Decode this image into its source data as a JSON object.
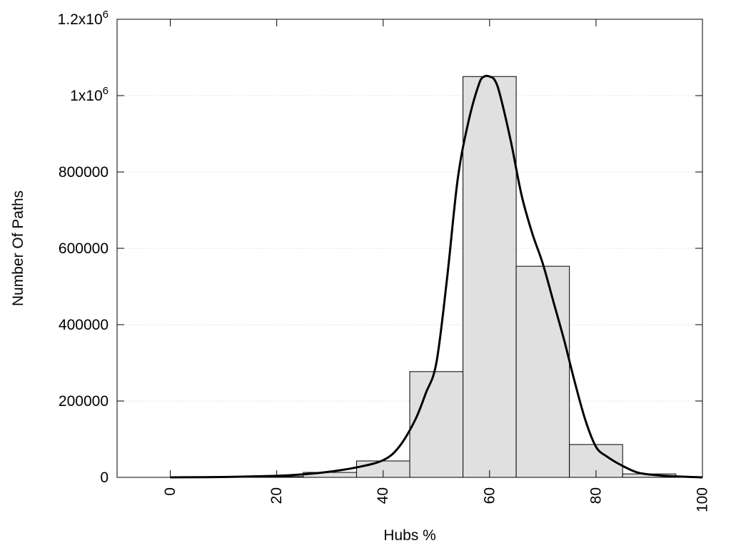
{
  "chart_data": {
    "type": "bar",
    "title": "",
    "xlabel": "Hubs %",
    "ylabel": "Number Of Paths",
    "xlim": [
      -10,
      100
    ],
    "ylim": [
      0,
      1200000
    ],
    "grid": "horizontal dotted",
    "bin_width": 10,
    "bars": [
      {
        "center": 0,
        "value": 0
      },
      {
        "center": 10,
        "value": 500
      },
      {
        "center": 20,
        "value": 2000
      },
      {
        "center": 30,
        "value": 13000
      },
      {
        "center": 40,
        "value": 43000
      },
      {
        "center": 50,
        "value": 277000
      },
      {
        "center": 60,
        "value": 1050000
      },
      {
        "center": 70,
        "value": 553000
      },
      {
        "center": 80,
        "value": 86000
      },
      {
        "center": 90,
        "value": 9000
      }
    ],
    "fitted_curve": {
      "x": [
        0,
        10,
        20,
        25,
        30,
        35,
        40,
        43,
        46,
        48,
        50,
        52,
        54,
        56,
        58,
        59,
        60,
        61,
        62,
        64,
        66,
        68,
        70,
        72,
        74,
        76,
        78,
        80,
        82,
        85,
        88,
        92,
        96,
        100
      ],
      "y": [
        0,
        1000,
        4000,
        8000,
        15000,
        26000,
        45000,
        80000,
        150000,
        220000,
        300000,
        520000,
        780000,
        930000,
        1030000,
        1050000,
        1050000,
        1040000,
        1000000,
        880000,
        740000,
        640000,
        560000,
        460000,
        360000,
        250000,
        150000,
        80000,
        55000,
        30000,
        12000,
        5000,
        2000,
        0
      ]
    },
    "x_ticks": [
      "0",
      "20",
      "40",
      "60",
      "80",
      "100"
    ],
    "x_tick_values": [
      0,
      20,
      40,
      60,
      80,
      100
    ],
    "y_ticks": [
      "0",
      "200000",
      "400000",
      "600000",
      "800000",
      "1x10",
      "1.2x10"
    ],
    "y_tick_exponents": [
      "",
      "",
      "",
      "",
      "",
      "6",
      "6"
    ],
    "y_tick_values": [
      0,
      200000,
      400000,
      600000,
      800000,
      1000000,
      1200000
    ],
    "colors": {
      "bar_fill": "#e0e0e0",
      "bar_stroke": "#000000",
      "curve": "#000000"
    }
  }
}
